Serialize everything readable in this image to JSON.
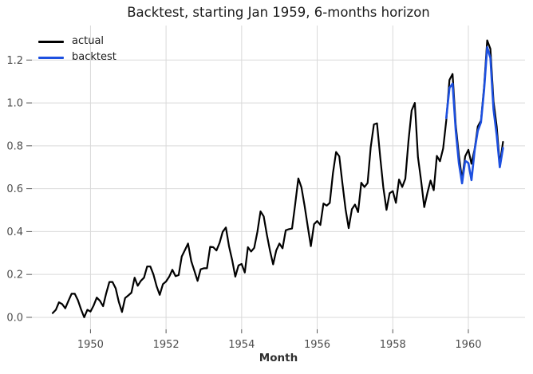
{
  "window_title": "Backtest, starting Jan 1959, 6-months horizon",
  "chart_data": {
    "type": "line",
    "title": "Backtest, starting Jan 1959, 6-months horizon",
    "xlabel": "Month",
    "ylabel": "",
    "grid": true,
    "background": "#ffffff",
    "gridline_color": "#d9d9d9",
    "tick_color": "#555555",
    "tick_label_color": "#4d4d4d",
    "legend_position": "upper left",
    "x_ticks": [
      1950,
      1952,
      1954,
      1956,
      1958,
      1960
    ],
    "y_ticks": [
      0.0,
      0.2,
      0.4,
      0.6,
      0.8,
      1.0,
      1.2
    ],
    "xlim": [
      1948.45,
      1961.5
    ],
    "ylim": [
      -0.056,
      1.361
    ],
    "series": [
      {
        "name": "actual",
        "color": "#000000",
        "stroke_width": 2.2,
        "start_year": 1949,
        "start_month": 1,
        "values": [
          0.02,
          0.035,
          0.07,
          0.062,
          0.042,
          0.077,
          0.11,
          0.11,
          0.08,
          0.037,
          0.0,
          0.035,
          0.027,
          0.055,
          0.092,
          0.077,
          0.052,
          0.112,
          0.165,
          0.165,
          0.135,
          0.072,
          0.025,
          0.09,
          0.102,
          0.115,
          0.185,
          0.147,
          0.17,
          0.185,
          0.237,
          0.237,
          0.2,
          0.145,
          0.105,
          0.155,
          0.167,
          0.19,
          0.222,
          0.192,
          0.197,
          0.284,
          0.314,
          0.344,
          0.262,
          0.217,
          0.17,
          0.224,
          0.229,
          0.229,
          0.329,
          0.327,
          0.312,
          0.347,
          0.399,
          0.419,
          0.332,
          0.267,
          0.19,
          0.242,
          0.249,
          0.209,
          0.327,
          0.307,
          0.324,
          0.399,
          0.494,
          0.471,
          0.387,
          0.312,
          0.247,
          0.312,
          0.344,
          0.322,
          0.406,
          0.411,
          0.414,
          0.526,
          0.648,
          0.606,
          0.519,
          0.424,
          0.332,
          0.434,
          0.449,
          0.431,
          0.531,
          0.521,
          0.534,
          0.673,
          0.771,
          0.751,
          0.626,
          0.504,
          0.416,
          0.504,
          0.526,
          0.491,
          0.628,
          0.608,
          0.626,
          0.793,
          0.9,
          0.905,
          0.748,
          0.606,
          0.501,
          0.579,
          0.589,
          0.534,
          0.643,
          0.608,
          0.646,
          0.825,
          0.965,
          1.0,
          0.748,
          0.636,
          0.514,
          0.581,
          0.638,
          0.593,
          0.753,
          0.728,
          0.788,
          0.918,
          1.107,
          1.135,
          0.895,
          0.756,
          0.643,
          0.751,
          0.781,
          0.716,
          0.786,
          0.89,
          0.918,
          1.075,
          1.292,
          1.252,
          1.008,
          0.89,
          0.713,
          0.818
        ]
      },
      {
        "name": "backtest",
        "color": "#1d50e0",
        "stroke_width": 2.6,
        "start_year": 1959,
        "start_month": 6,
        "values": [
          0.93,
          1.07,
          1.09,
          0.87,
          0.72,
          0.625,
          0.73,
          0.72,
          0.64,
          0.78,
          0.87,
          0.91,
          1.06,
          1.26,
          1.21,
          0.97,
          0.85,
          0.7,
          0.79
        ]
      }
    ]
  }
}
